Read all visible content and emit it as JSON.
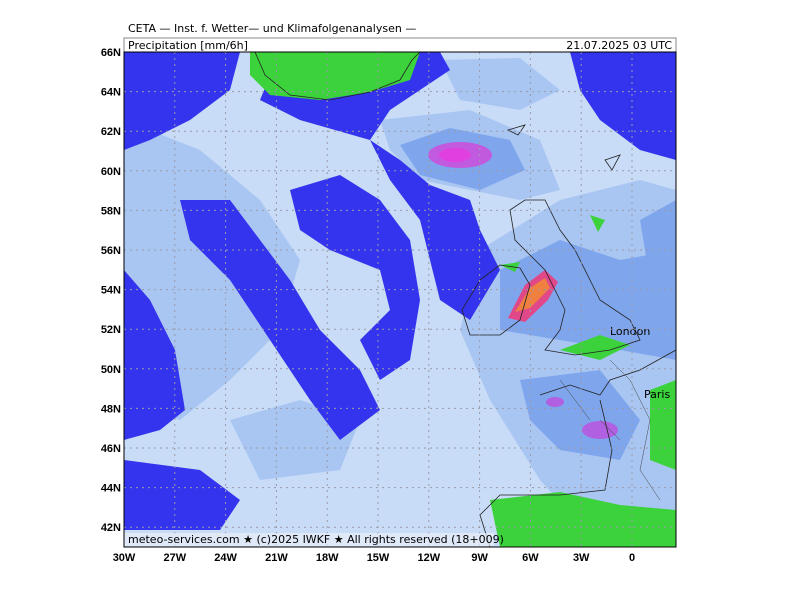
{
  "header": {
    "institute": "CETA — Inst. f. Wetter— und Klimafolgenanalysen —",
    "parameter": "Precipitation [mm/6h]",
    "valid_time": "21.07.2025 03 UTC"
  },
  "footer": "meteo-services.com ★ (c)2025 IWKF ★ All rights reserved (18+009)",
  "axes": {
    "lat_labels": [
      "66N",
      "64N",
      "62N",
      "60N",
      "58N",
      "56N",
      "54N",
      "52N",
      "50N",
      "48N",
      "46N",
      "44N",
      "42N"
    ],
    "lon_labels": [
      "30W",
      "27W",
      "24W",
      "21W",
      "18W",
      "15W",
      "12W",
      "9W",
      "6W",
      "3W",
      "0"
    ]
  },
  "places": [
    "London",
    "Paris"
  ]
}
